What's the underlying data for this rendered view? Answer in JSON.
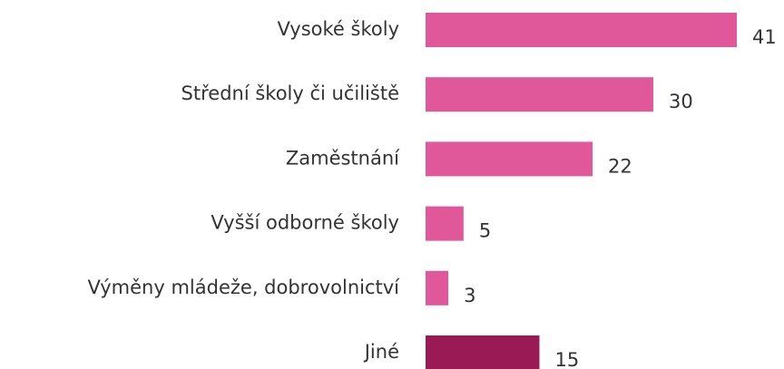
{
  "chart_data": {
    "type": "barh",
    "categories": [
      "Vysoké školy",
      "Střední školy či učiliště",
      "Zaměstnání",
      "Vyšší odborné školy",
      "Výměny mládeže, dobrovolnictví",
      "Jiné"
    ],
    "values": [
      41,
      30,
      22,
      5,
      3,
      15
    ],
    "colors": [
      "#e0579a",
      "#e0579a",
      "#e0579a",
      "#e0579a",
      "#e0579a",
      "#9a1a55"
    ]
  }
}
